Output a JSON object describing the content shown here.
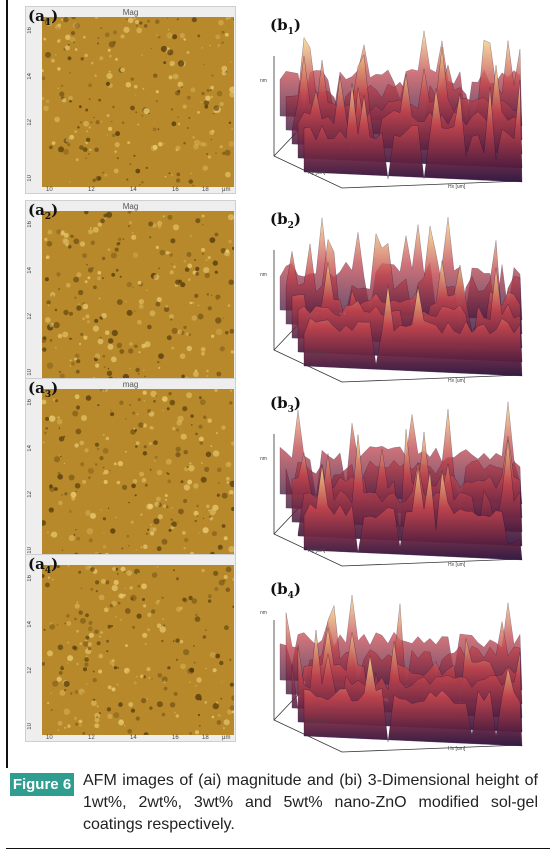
{
  "figure": {
    "label": "Figure 6",
    "caption": "AFM images of (ai) magnitude and (bi) 3-Dimensional height of 1wt%, 2wt%, 3wt% and 5wt% nano-ZnO modified sol-gel coatings respectively.",
    "colors": {
      "label_bg": "#2f9d8f",
      "afm_tone": "#b8892b",
      "surface_dark": "#2a0f3a",
      "surface_mid": "#c0454e",
      "surface_light": "#f6d88a"
    }
  },
  "afm_panels": [
    {
      "label": "a",
      "sub": "1",
      "title": "Mag",
      "x_ticks": [
        "10",
        "12",
        "14",
        "16",
        "18",
        "μm"
      ],
      "y_ticks": [
        "16",
        "14",
        "12",
        "10"
      ]
    },
    {
      "label": "a",
      "sub": "2",
      "title": "Mag",
      "x_ticks": [
        "10",
        "12",
        "14",
        "16",
        "17",
        "μm"
      ],
      "y_ticks": [
        "16",
        "14",
        "12",
        "10"
      ]
    },
    {
      "label": "a",
      "sub": "3",
      "title": "mag",
      "x_ticks": [
        "10",
        "12",
        "14",
        "16",
        "18",
        "μm"
      ],
      "y_ticks": [
        "16",
        "14",
        "12",
        "10"
      ]
    },
    {
      "label": "a",
      "sub": "4",
      "title": "",
      "x_ticks": [
        "10",
        "12",
        "14",
        "16",
        "18",
        "μm"
      ],
      "y_ticks": [
        "16",
        "14",
        "12",
        "10"
      ]
    }
  ],
  "surface_panels": [
    {
      "label": "b",
      "sub": "1",
      "x_axis": "Hx [um]",
      "y_axis": "Hy [um]",
      "z_tick": "nm"
    },
    {
      "label": "b",
      "sub": "2",
      "x_axis": "Hx [um]",
      "y_axis": "Hy [um]",
      "z_tick": "nm"
    },
    {
      "label": "b",
      "sub": "3",
      "x_axis": "Hx [um]",
      "y_axis": "Hy [um]",
      "z_tick": "nm"
    },
    {
      "label": "b",
      "sub": "4",
      "x_axis": "Hx [um]",
      "y_axis": "Hy [um]",
      "z_tick": "nm"
    }
  ]
}
